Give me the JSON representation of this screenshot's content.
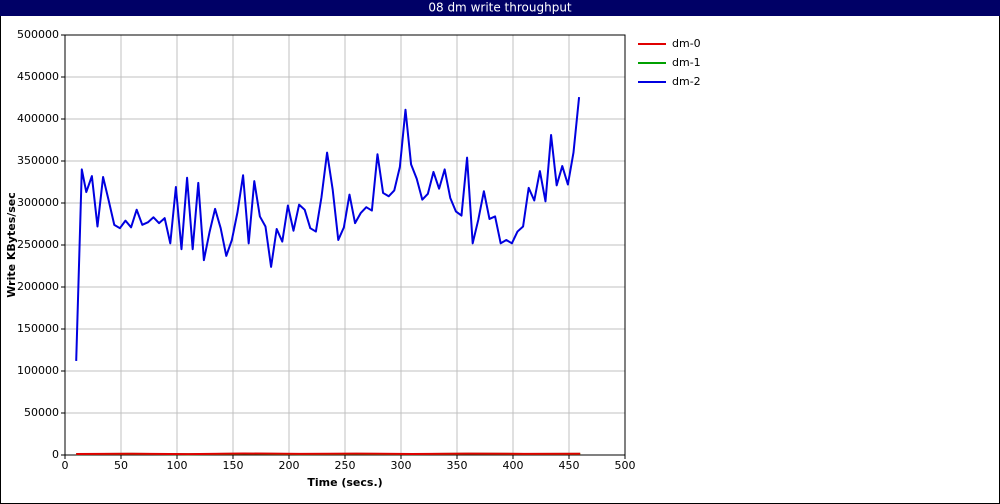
{
  "chart_data": {
    "type": "line",
    "title": "08 dm write throughput",
    "xlabel": "Time (secs.)",
    "ylabel": "Write KBytes/sec",
    "xlim": [
      0,
      500
    ],
    "xticks": [
      0,
      50,
      100,
      150,
      200,
      250,
      300,
      350,
      400,
      450,
      500
    ],
    "ylim": [
      0,
      500000
    ],
    "yticks": [
      0,
      50000,
      100000,
      150000,
      200000,
      250000,
      300000,
      350000,
      400000,
      450000,
      500000
    ],
    "grid": true,
    "legend": "right",
    "series": [
      {
        "name": "dm-0",
        "color": "#e00000",
        "x": [
          10,
          60,
          110,
          160,
          210,
          260,
          310,
          360,
          410,
          460
        ],
        "values": [
          1200,
          1500,
          1000,
          1800,
          1300,
          1600,
          1200,
          1700,
          1400,
          1500
        ]
      },
      {
        "name": "dm-1",
        "color": "#00a000",
        "x": [
          10,
          60,
          110,
          160,
          210,
          260,
          310,
          360,
          410,
          460
        ],
        "values": [
          1000,
          1300,
          900,
          1500,
          1100,
          1400,
          1000,
          1500,
          1200,
          1300
        ]
      },
      {
        "name": "dm-2",
        "color": "#0000e0",
        "x": [
          10,
          15,
          19,
          24,
          29,
          34,
          39,
          44,
          49,
          54,
          59,
          64,
          69,
          74,
          79,
          84,
          89,
          94,
          99,
          104,
          109,
          114,
          119,
          124,
          129,
          134,
          139,
          144,
          149,
          154,
          159,
          164,
          169,
          174,
          179,
          184,
          189,
          194,
          199,
          204,
          209,
          214,
          219,
          224,
          229,
          234,
          239,
          244,
          249,
          254,
          259,
          264,
          269,
          274,
          279,
          284,
          289,
          294,
          299,
          304,
          309,
          314,
          319,
          324,
          329,
          334,
          339,
          344,
          349,
          354,
          359,
          364,
          369,
          374,
          379,
          384,
          389,
          394,
          399,
          404,
          409,
          414,
          419,
          424,
          429,
          434,
          439,
          444,
          449,
          454,
          459
        ],
        "values": [
          112000,
          340000,
          313000,
          332000,
          272000,
          331000,
          303000,
          274000,
          270000,
          279000,
          271000,
          292000,
          274000,
          277000,
          283000,
          276000,
          282000,
          252000,
          319000,
          245000,
          330000,
          245000,
          324000,
          232000,
          265000,
          293000,
          270000,
          237000,
          256000,
          289000,
          333000,
          252000,
          326000,
          284000,
          272000,
          224000,
          269000,
          254000,
          297000,
          267000,
          298000,
          292000,
          270000,
          266000,
          307000,
          360000,
          316000,
          256000,
          271000,
          310000,
          276000,
          288000,
          295000,
          291000,
          358000,
          312000,
          308000,
          315000,
          343000,
          411000,
          346000,
          329000,
          304000,
          311000,
          337000,
          317000,
          340000,
          306000,
          290000,
          285000,
          354000,
          252000,
          280000,
          314000,
          281000,
          284000,
          252000,
          256000,
          252000,
          266000,
          272000,
          318000,
          303000,
          338000,
          302000,
          381000,
          321000,
          344000,
          322000,
          360000,
          426000
        ]
      }
    ]
  }
}
